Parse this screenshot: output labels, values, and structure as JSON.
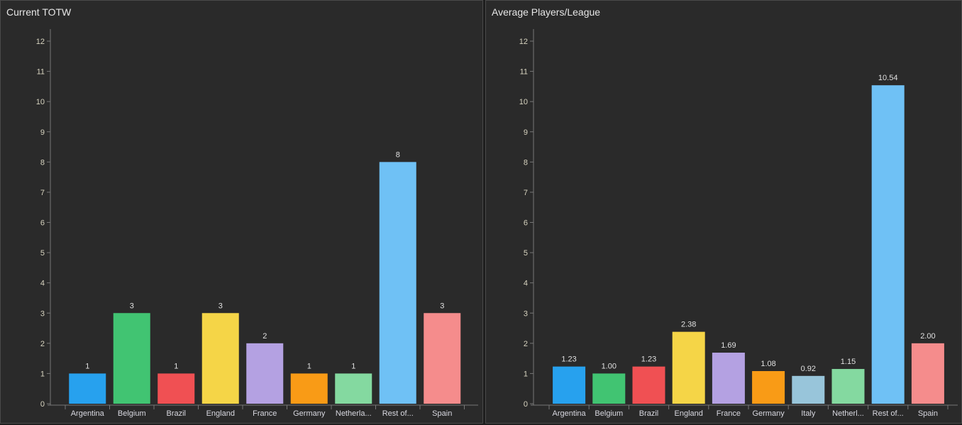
{
  "chart_data": [
    {
      "type": "bar",
      "title": "Current TOTW",
      "categories": [
        "Argentina",
        "Belgium",
        "Brazil",
        "England",
        "France",
        "Germany",
        "Netherla...",
        "Rest of...",
        "Spain"
      ],
      "values": [
        1,
        3,
        1,
        3,
        2,
        1,
        1,
        8,
        3
      ],
      "data_labels": [
        "1",
        "3",
        "1",
        "3",
        "2",
        "1",
        "1",
        "8",
        "3"
      ],
      "colors": [
        "#27a1ee",
        "#41c472",
        "#f05053",
        "#f5d547",
        "#b4a1e2",
        "#f99b16",
        "#84d9a0",
        "#6fc1f5",
        "#f58c8c"
      ],
      "yticks": [
        "0",
        "1",
        "2",
        "3",
        "4",
        "5",
        "6",
        "7",
        "8",
        "9",
        "10",
        "11",
        "12"
      ],
      "ylim": [
        0,
        12
      ],
      "xlabel": "",
      "ylabel": "",
      "grid": false
    },
    {
      "type": "bar",
      "title": "Average Players/League",
      "categories": [
        "Argentina",
        "Belgium",
        "Brazil",
        "England",
        "France",
        "Germany",
        "Italy",
        "Netherl...",
        "Rest of...",
        "Spain"
      ],
      "values": [
        1.23,
        1.0,
        1.23,
        2.38,
        1.69,
        1.08,
        0.92,
        1.15,
        10.54,
        2.0
      ],
      "data_labels": [
        "1.23",
        "1.00",
        "1.23",
        "2.38",
        "1.69",
        "1.08",
        "0.92",
        "1.15",
        "10.54",
        "2.00"
      ],
      "colors": [
        "#27a1ee",
        "#41c472",
        "#f05053",
        "#f5d547",
        "#b4a1e2",
        "#f99b16",
        "#98c5da",
        "#84d9a0",
        "#6fc1f5",
        "#f58c8c"
      ],
      "yticks": [
        "0",
        "1",
        "2",
        "3",
        "4",
        "5",
        "6",
        "7",
        "8",
        "9",
        "10",
        "11",
        "12"
      ],
      "ylim": [
        0,
        12
      ],
      "xlabel": "",
      "ylabel": "",
      "grid": false
    }
  ]
}
